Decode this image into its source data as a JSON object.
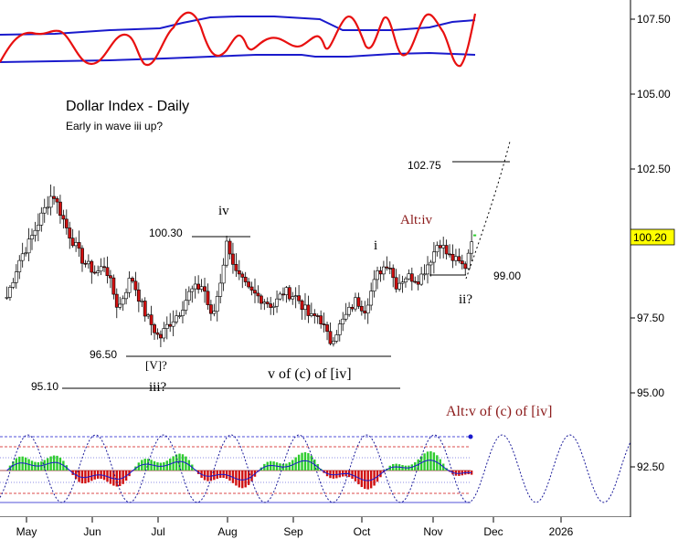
{
  "title": "Dollar Index - Daily",
  "subtitle": "Early in wave iii up?",
  "price_label": "100.20",
  "colors": {
    "up": "#ffffff",
    "down": "#d01010",
    "oscillator": "#e81010",
    "band": "#1a1acc",
    "wave_label": "#8b1a1a",
    "histogram_up": "#2ecc2e",
    "histogram_down": "#d01010",
    "cycle": "#1a1a99"
  },
  "chart_data": {
    "type": "candlestick",
    "y_axis": {
      "min": 91.0,
      "max": 108.6,
      "ticks": [
        "107.50",
        "105.00",
        "102.50",
        "100.20",
        "97.50",
        "95.00",
        "92.50"
      ],
      "position": "right"
    },
    "x_axis": {
      "labels": [
        "May",
        "Jun",
        "Jul",
        "Aug",
        "Sep",
        "Oct",
        "Nov",
        "Dec",
        "2026"
      ]
    },
    "grid": false,
    "levels": [
      {
        "label": "102.75",
        "value": 102.75
      },
      {
        "label": "100.30",
        "value": 100.3
      },
      {
        "label": "99.00",
        "value": 99.0
      },
      {
        "label": "96.50",
        "value": 96.5
      },
      {
        "label": "95.10",
        "value": 95.1
      }
    ],
    "wave_labels": [
      "iv",
      "i",
      "ii?",
      "[V]?",
      "iii?",
      "v of (c) of [iv]"
    ],
    "alt_labels": [
      "Alt:iv",
      "Alt:v of (c) of [iv]"
    ],
    "projection": {
      "from": 98.9,
      "to": 103.5
    },
    "anchors": [
      {
        "date": "Apr 22",
        "close": 98.2
      },
      {
        "date": "Apr 28",
        "close": 99.5
      },
      {
        "date": "May 2",
        "close": 100.0
      },
      {
        "date": "May 9",
        "close": 101.1
      },
      {
        "date": "May 13",
        "close": 101.7
      },
      {
        "date": "May 20",
        "close": 100.4
      },
      {
        "date": "May 27",
        "close": 99.4
      },
      {
        "date": "Jun 2",
        "close": 99.0
      },
      {
        "date": "Jun 6",
        "close": 99.3
      },
      {
        "date": "Jun 12",
        "close": 97.8
      },
      {
        "date": "Jun 18",
        "close": 98.9
      },
      {
        "date": "Jun 24",
        "close": 97.7
      },
      {
        "date": "Jul 1",
        "close": 96.8
      },
      {
        "date": "Jul 4",
        "close": 97.2
      },
      {
        "date": "Jul 10",
        "close": 97.7
      },
      {
        "date": "Jul 15",
        "close": 98.4
      },
      {
        "date": "Jul 21",
        "close": 98.6
      },
      {
        "date": "Jul 25",
        "close": 97.4
      },
      {
        "date": "Jul 29",
        "close": 98.8
      },
      {
        "date": "Aug 1",
        "close": 100.1
      },
      {
        "date": "Aug 5",
        "close": 99.0
      },
      {
        "date": "Aug 11",
        "close": 98.4
      },
      {
        "date": "Aug 18",
        "close": 98.1
      },
      {
        "date": "Aug 22",
        "close": 97.9
      },
      {
        "date": "Aug 27",
        "close": 98.4
      },
      {
        "date": "Sep 2",
        "close": 98.2
      },
      {
        "date": "Sep 8",
        "close": 97.5
      },
      {
        "date": "Sep 12",
        "close": 97.6
      },
      {
        "date": "Sep 17",
        "close": 96.7
      },
      {
        "date": "Sep 23",
        "close": 97.4
      },
      {
        "date": "Sep 29",
        "close": 98.1
      },
      {
        "date": "Oct 3",
        "close": 97.8
      },
      {
        "date": "Oct 9",
        "close": 99.0
      },
      {
        "date": "Oct 14",
        "close": 99.4
      },
      {
        "date": "Oct 17",
        "close": 98.6
      },
      {
        "date": "Oct 22",
        "close": 98.9
      },
      {
        "date": "Oct 28",
        "close": 98.8
      },
      {
        "date": "Nov 3",
        "close": 99.6
      },
      {
        "date": "Nov 6",
        "close": 100.1
      },
      {
        "date": "Nov 10",
        "close": 99.6
      },
      {
        "date": "Nov 14",
        "close": 99.4
      },
      {
        "date": "Nov 18",
        "close": 99.2
      },
      {
        "date": "Nov 21",
        "close": 100.2
      }
    ]
  }
}
